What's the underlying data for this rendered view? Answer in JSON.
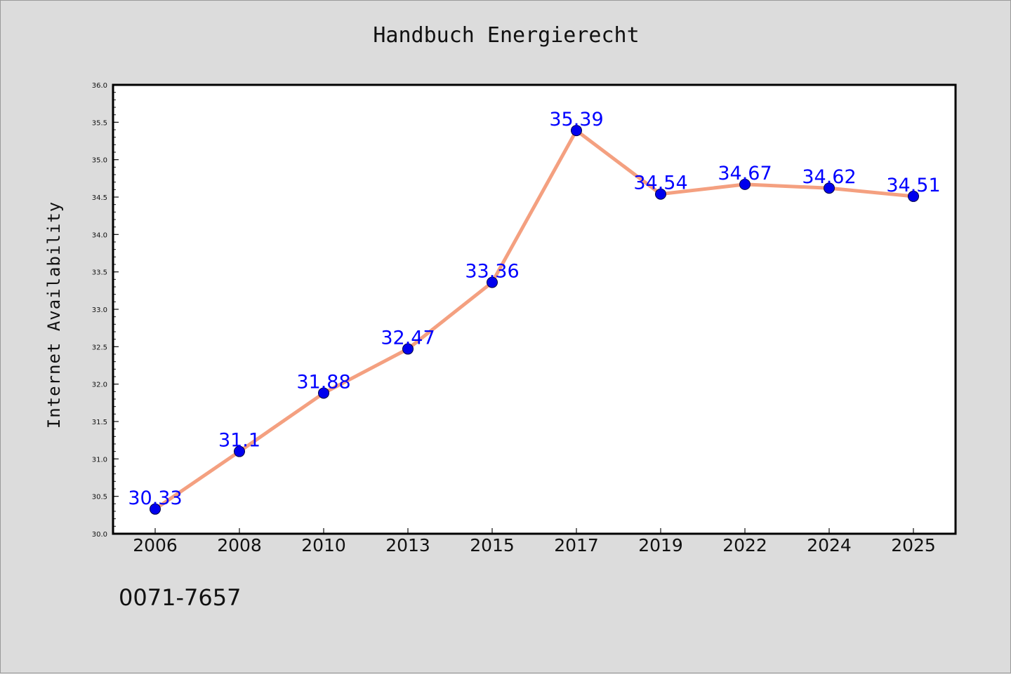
{
  "chart_data": {
    "type": "line",
    "title": "Handbuch Energierecht",
    "xlabel": "",
    "ylabel": "Internet Availability",
    "categories": [
      "2006",
      "2008",
      "2010",
      "2013",
      "2015",
      "2017",
      "2019",
      "2022",
      "2024",
      "2025"
    ],
    "values": [
      30.33,
      31.1,
      31.88,
      32.47,
      33.36,
      35.39,
      34.54,
      34.67,
      34.62,
      34.51
    ],
    "data_labels": [
      "30.33",
      "31.1",
      "31.88",
      "32.47",
      "33.36",
      "35.39",
      "34.54",
      "34.67",
      "34.62",
      "34.51"
    ],
    "ylim": [
      30.0,
      36.0
    ],
    "yticks": [
      "30.0",
      "30.5",
      "31.0",
      "31.5",
      "32.0",
      "32.5",
      "33.0",
      "33.5",
      "34.0",
      "34.5",
      "35.0",
      "35.5",
      "36.0"
    ],
    "grid": false,
    "legend": "none",
    "colors": {
      "line": "#f4a080",
      "marker": "#0000ee",
      "label": "#0000ff",
      "background": "#dcdcdc",
      "plot_area": "#ffffff"
    }
  },
  "footer_text": "0071-7657"
}
